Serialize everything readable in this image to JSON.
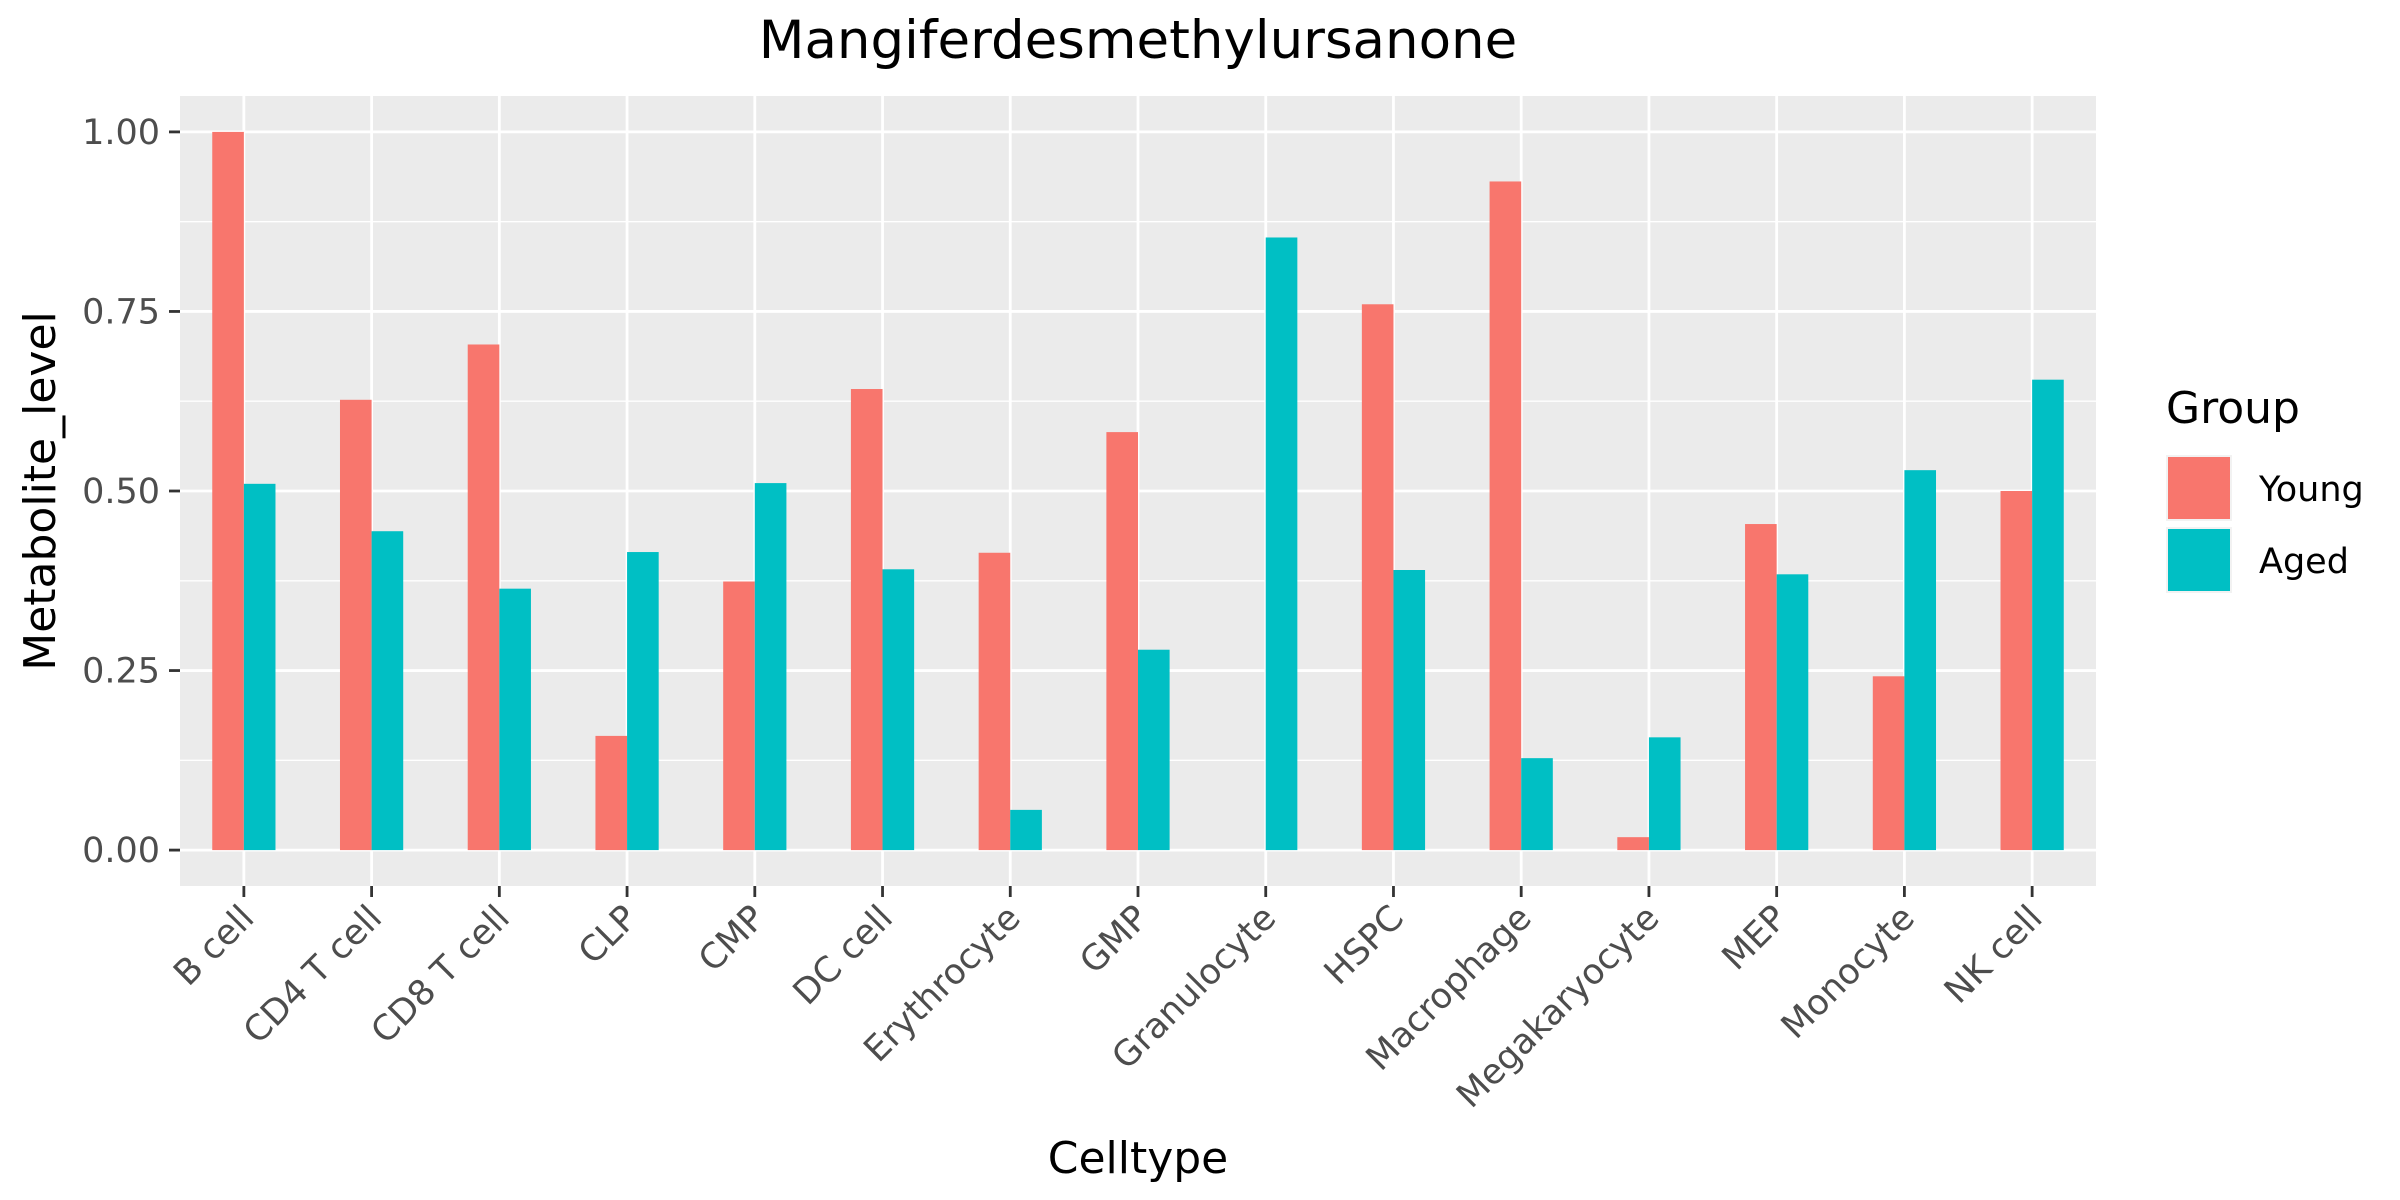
{
  "chart_data": {
    "type": "bar",
    "title": "Mangiferdesmethylursanone",
    "xlabel": "Celltype",
    "ylabel": "Metabolite_level",
    "categories": [
      "B cell",
      "CD4 T cell",
      "CD8 T cell",
      "CLP",
      "CMP",
      "DC cell",
      "Erythrocyte",
      "GMP",
      "Granulocyte",
      "HSPC",
      "Macrophage",
      "Megakaryocyte",
      "MEP",
      "Monocyte",
      "NK cell"
    ],
    "series": [
      {
        "name": "Young",
        "color": "#F8766D",
        "values": [
          1.0,
          0.627,
          0.704,
          0.159,
          0.374,
          0.642,
          0.414,
          0.582,
          0.0,
          0.76,
          0.931,
          0.018,
          0.454,
          0.242,
          0.5
        ]
      },
      {
        "name": "Aged",
        "color": "#00BFC4",
        "values": [
          0.51,
          0.444,
          0.364,
          0.415,
          0.511,
          0.391,
          0.056,
          0.279,
          0.853,
          0.39,
          0.128,
          0.157,
          0.384,
          0.529,
          0.655
        ]
      }
    ],
    "ylim": [
      -0.05,
      1.05
    ],
    "yticks": [
      0.0,
      0.25,
      0.5,
      0.75,
      1.0
    ],
    "ytick_labels": [
      "0.00",
      "0.25",
      "0.50",
      "0.75",
      "1.00"
    ],
    "legend": {
      "title": "Group",
      "position": "right"
    },
    "grid": true,
    "panel_background": "#EBEBEB"
  }
}
